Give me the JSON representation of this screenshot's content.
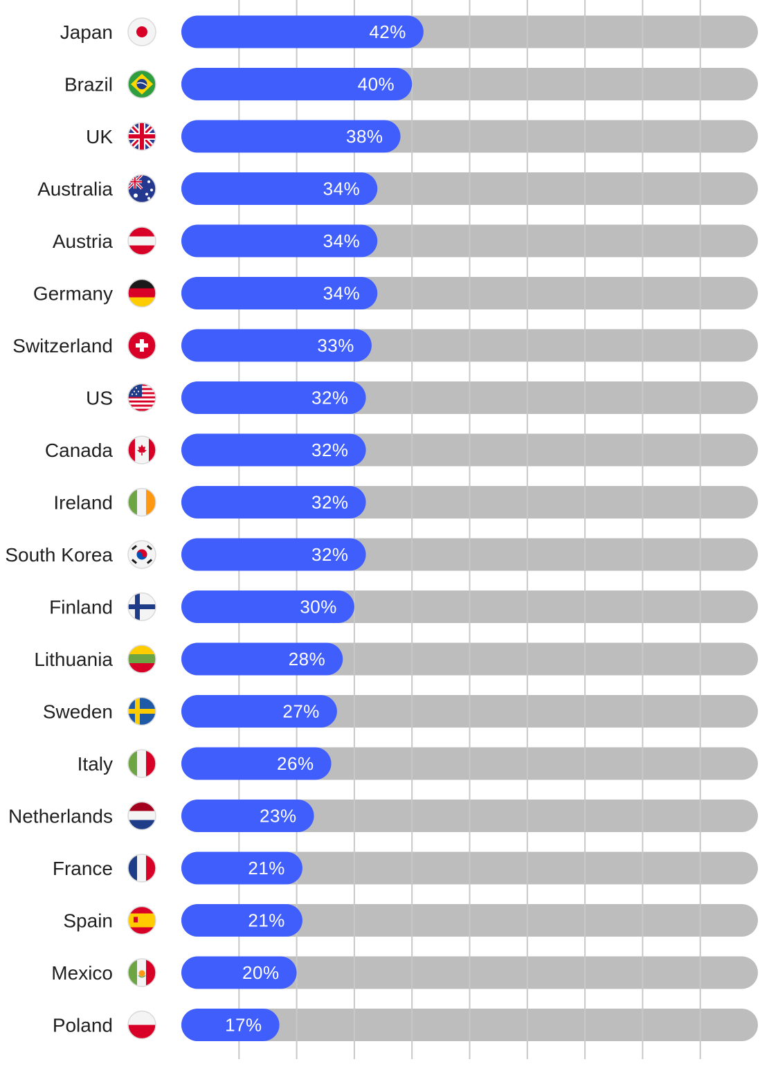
{
  "chart_data": {
    "type": "bar",
    "orientation": "horizontal",
    "title": "",
    "xlabel": "",
    "ylabel": "",
    "xlim": [
      0,
      100
    ],
    "grid": true,
    "value_suffix": "%",
    "colors": {
      "bar": "#3f5efb",
      "track": "#bdbdbd",
      "grid": "#c8c8c8"
    },
    "categories": [
      "Japan",
      "Brazil",
      "UK",
      "Australia",
      "Austria",
      "Germany",
      "Switzerland",
      "US",
      "Canada",
      "Ireland",
      "South Korea",
      "Finland",
      "Lithuania",
      "Sweden",
      "Italy",
      "Netherlands",
      "France",
      "Spain",
      "Mexico",
      "Poland"
    ],
    "values": [
      42,
      40,
      38,
      34,
      34,
      34,
      33,
      32,
      32,
      32,
      32,
      30,
      28,
      27,
      26,
      23,
      21,
      21,
      20,
      17
    ],
    "flags": [
      "jp",
      "br",
      "uk",
      "au",
      "at",
      "de",
      "ch",
      "us",
      "ca",
      "ie",
      "kr",
      "fi",
      "lt",
      "se",
      "it",
      "nl",
      "fr",
      "es",
      "mx",
      "pl"
    ]
  }
}
